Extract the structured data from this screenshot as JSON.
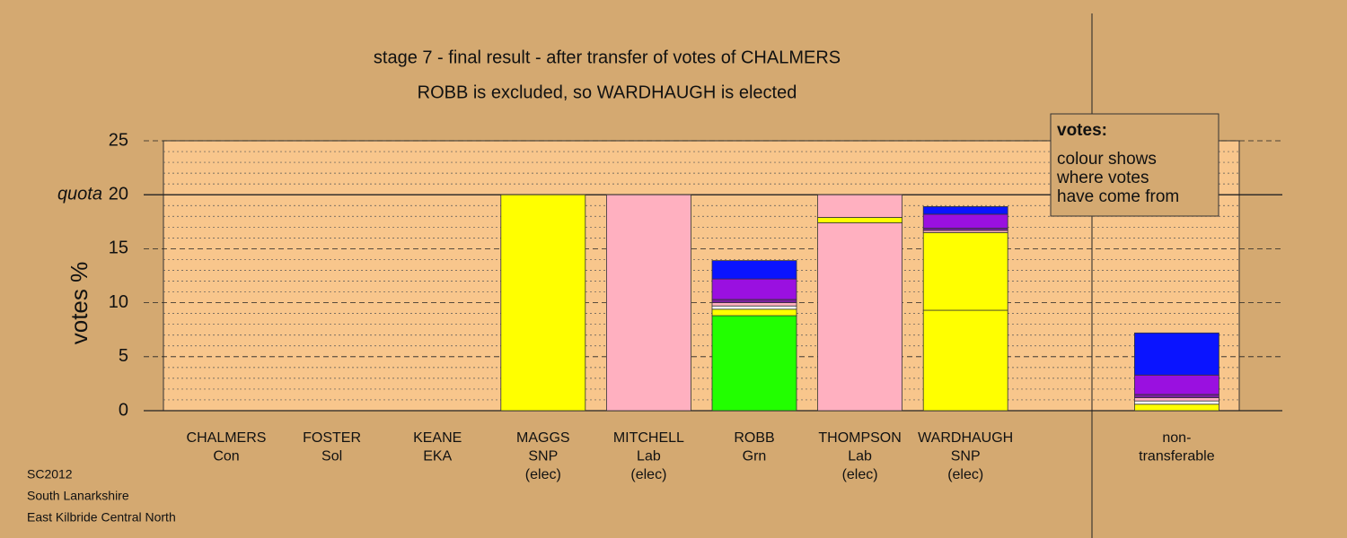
{
  "chart_data": {
    "type": "stacked-bar",
    "title": "stage 7 - final result - after transfer of votes of CHALMERS",
    "subtitle": "ROBB is excluded, so WARDHAUGH is elected",
    "ylabel": "votes %",
    "quota_label": "quota",
    "quota": 20,
    "ylim": [
      0,
      25
    ],
    "yticks": [
      0,
      5,
      10,
      15,
      20,
      25
    ],
    "minor_yticks": [
      1,
      2,
      3,
      4,
      6,
      7,
      8,
      9,
      11,
      12,
      13,
      14,
      16,
      17,
      18,
      19,
      21,
      22,
      23,
      24
    ],
    "categories": [
      [
        "CHALMERS",
        "Con"
      ],
      [
        "FOSTER",
        "Sol"
      ],
      [
        "KEANE",
        "EKA"
      ],
      [
        "MAGGS",
        "SNP",
        "(elec)"
      ],
      [
        "MITCHELL",
        "Lab",
        "(elec)"
      ],
      [
        "ROBB",
        "Grn"
      ],
      [
        "THOMPSON",
        "Lab",
        "(elec)"
      ],
      [
        "WARDHAUGH",
        "SNP",
        "(elec)"
      ],
      null,
      [
        "non-",
        "transferable"
      ]
    ],
    "stacks": [
      [],
      [],
      [],
      [
        {
          "value": 20,
          "color": "#ffff00"
        }
      ],
      [
        {
          "value": 20,
          "color": "#ffb0c0"
        }
      ],
      [
        {
          "value": 8.8,
          "color": "#22ff00"
        },
        {
          "value": 0.6,
          "color": "#ffff00"
        },
        {
          "value": 0.3,
          "color": "#ffffff"
        },
        {
          "value": 0.3,
          "color": "#ffb0c0"
        },
        {
          "value": 0.3,
          "color": "#7a1fa0"
        },
        {
          "value": 1.9,
          "color": "#9a10e0"
        },
        {
          "value": 1.7,
          "color": "#0a14ff"
        }
      ],
      [
        {
          "value": 17.4,
          "color": "#ffb0c0"
        },
        {
          "value": 0.5,
          "color": "#ffff00"
        },
        {
          "value": 2.1,
          "color": "#ffb0c0"
        }
      ],
      [
        {
          "value": 9.3,
          "color": "#ffff00"
        },
        {
          "value": 7.2,
          "color": "#ffff00"
        },
        {
          "value": 0.2,
          "color": "#ffb0c0"
        },
        {
          "value": 0.2,
          "color": "#7a1fa0"
        },
        {
          "value": 1.3,
          "color": "#9a10e0"
        },
        {
          "value": 0.7,
          "color": "#0a14ff"
        }
      ],
      null,
      [
        {
          "value": 0.6,
          "color": "#ffff00"
        },
        {
          "value": 0.3,
          "color": "#ffffff"
        },
        {
          "value": 0.3,
          "color": "#ffb0c0"
        },
        {
          "value": 0.3,
          "color": "#7a1fa0"
        },
        {
          "value": 1.8,
          "color": "#9a10e0"
        },
        {
          "value": 3.9,
          "color": "#0a14ff"
        }
      ]
    ],
    "note": {
      "title": "votes:",
      "lines": [
        "colour shows",
        "where votes",
        "have come from"
      ]
    },
    "footer": [
      "SC2012",
      "South Lanarkshire",
      "East Kilbride Central North"
    ]
  }
}
